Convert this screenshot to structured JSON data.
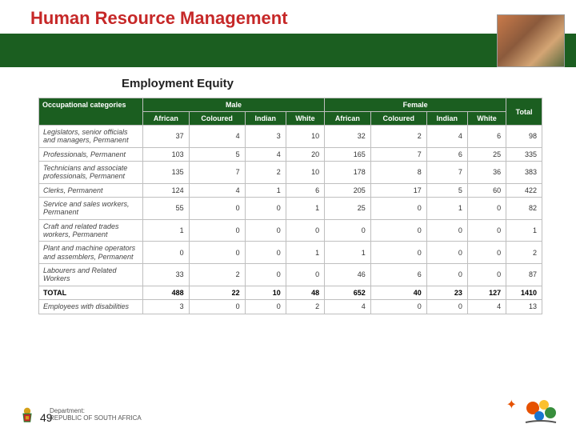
{
  "title": "Human Resource Management",
  "subtitle": "Employment Equity",
  "pageNumber": "49",
  "dept": {
    "line1": "Department:",
    "line2": "REPUBLIC OF SOUTH AFRICA"
  },
  "colors": {
    "header": "#1b5e20",
    "titleColor": "#c62828",
    "border": "#bfbfbf",
    "background": "#ffffff"
  },
  "table": {
    "occupationalHeader": "Occupational categories",
    "groups": [
      "Male",
      "Female"
    ],
    "subcols": [
      "African",
      "Coloured",
      "Indian",
      "White",
      "African",
      "Coloured",
      "Indian",
      "White"
    ],
    "totalHeader": "Total",
    "rows": [
      {
        "label": "Legislators, senior officials and managers, Permanent",
        "v": [
          "37",
          "4",
          "3",
          "10",
          "32",
          "2",
          "4",
          "6",
          "98"
        ]
      },
      {
        "label": "Professionals, Permanent",
        "v": [
          "103",
          "5",
          "4",
          "20",
          "165",
          "7",
          "6",
          "25",
          "335"
        ]
      },
      {
        "label": "Technicians and associate professionals, Permanent",
        "v": [
          "135",
          "7",
          "2",
          "10",
          "178",
          "8",
          "7",
          "36",
          "383"
        ]
      },
      {
        "label": "Clerks, Permanent",
        "v": [
          "124",
          "4",
          "1",
          "6",
          "205",
          "17",
          "5",
          "60",
          "422"
        ]
      },
      {
        "label": "Service and sales workers, Permanent",
        "v": [
          "55",
          "0",
          "0",
          "1",
          "25",
          "0",
          "1",
          "0",
          "82"
        ]
      },
      {
        "label": "Craft and related trades workers, Permanent",
        "v": [
          "1",
          "0",
          "0",
          "0",
          "0",
          "0",
          "0",
          "0",
          "1"
        ]
      },
      {
        "label": "Plant and machine operators and assemblers, Permanent",
        "v": [
          "0",
          "0",
          "0",
          "1",
          "1",
          "0",
          "0",
          "0",
          "2"
        ]
      },
      {
        "label": "Labourers and Related Workers",
        "v": [
          "33",
          "2",
          "0",
          "0",
          "46",
          "6",
          "0",
          "0",
          "87"
        ]
      }
    ],
    "total": {
      "label": "TOTAL",
      "v": [
        "488",
        "22",
        "10",
        "48",
        "652",
        "40",
        "23",
        "127",
        "1410"
      ]
    },
    "disabilities": {
      "label": "Employees with disabilities",
      "v": [
        "3",
        "0",
        "0",
        "2",
        "4",
        "0",
        "0",
        "4",
        "13"
      ]
    }
  }
}
